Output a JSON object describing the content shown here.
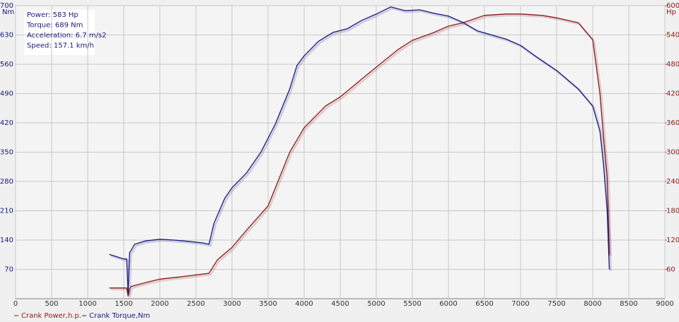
{
  "chart_data": {
    "type": "line",
    "annotations": [
      "Power: 583 Hp",
      "Torque: 689 Nm",
      "Acceleration: 6.7 m/s2",
      "Speed: 157.1 km/h"
    ],
    "ylabel": "Nm",
    "y2label": "Hp",
    "xlim": [
      0,
      9000
    ],
    "xticks": [
      0,
      500,
      1000,
      1500,
      2000,
      2500,
      3000,
      3500,
      4000,
      4500,
      5000,
      5500,
      6000,
      6500,
      7000,
      7500,
      8000,
      8500,
      9000
    ],
    "ylim": [
      0,
      700
    ],
    "yticks": [
      70,
      140,
      210,
      280,
      350,
      420,
      490,
      560,
      630,
      700
    ],
    "y2lim": [
      0,
      600
    ],
    "y2ticks": [
      60,
      120,
      180,
      240,
      300,
      360,
      420,
      480,
      540,
      600
    ],
    "grid": true,
    "series": [
      {
        "name": "Crank Power,h.p.",
        "color": "#8b1a1a",
        "axis": "y2",
        "x": [
          1300,
          1540,
          1560,
          1580,
          1600,
          1800,
          2000,
          2300,
          2680,
          2800,
          3000,
          3200,
          3500,
          3800,
          4000,
          4300,
          4500,
          4800,
          5000,
          5300,
          5500,
          5800,
          6000,
          6200,
          6500,
          6800,
          7000,
          7300,
          7500,
          7800,
          8000,
          8100,
          8150,
          8200,
          8230
        ],
        "values": [
          22,
          22,
          5,
          20,
          25,
          33,
          40,
          45,
          52,
          80,
          105,
          140,
          190,
          300,
          350,
          395,
          413,
          450,
          474,
          510,
          529,
          545,
          558,
          565,
          580,
          583,
          583,
          580,
          575,
          565,
          530,
          420,
          330,
          250,
          90
        ]
      },
      {
        "name": "Crank Torque,Nm",
        "color": "#1a1a80",
        "axis": "y",
        "x": [
          1300,
          1500,
          1540,
          1560,
          1580,
          1600,
          1650,
          1800,
          2000,
          2200,
          2400,
          2600,
          2680,
          2750,
          2900,
          3000,
          3200,
          3400,
          3600,
          3800,
          3900,
          4000,
          4200,
          4400,
          4600,
          4800,
          5000,
          5200,
          5400,
          5600,
          5800,
          6000,
          6200,
          6400,
          6600,
          6800,
          7000,
          7200,
          7500,
          7800,
          8000,
          8100,
          8150,
          8200,
          8230
        ],
        "values": [
          106,
          95,
          95,
          13,
          110,
          115,
          130,
          138,
          142,
          140,
          137,
          133,
          130,
          180,
          240,
          265,
          300,
          350,
          417,
          501,
          557,
          580,
          615,
          636,
          645,
          665,
          680,
          697,
          688,
          690,
          682,
          675,
          660,
          640,
          630,
          620,
          605,
          580,
          545,
          501,
          460,
          400,
          320,
          210,
          70
        ]
      }
    ]
  }
}
